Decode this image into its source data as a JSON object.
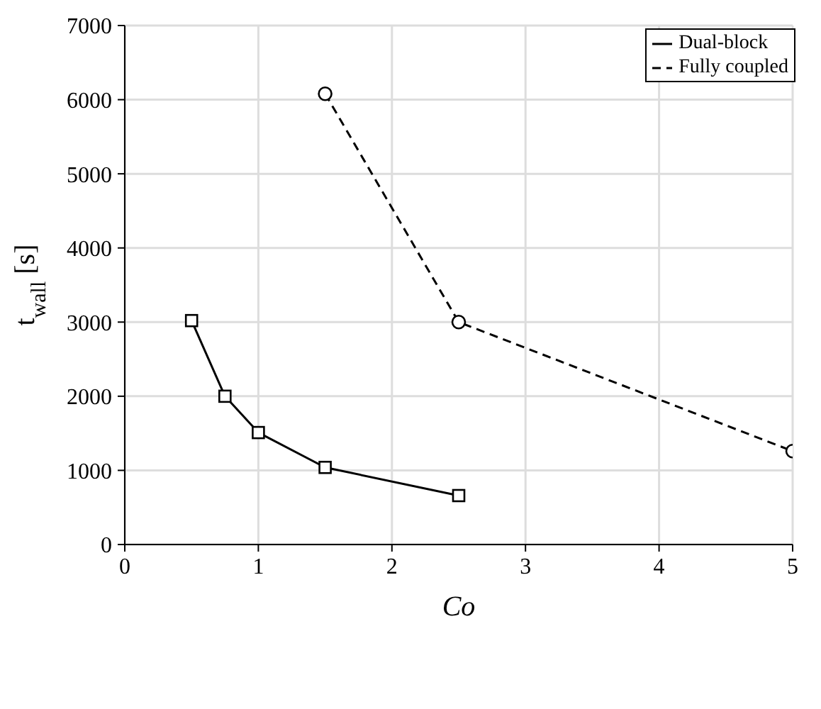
{
  "chart_data": {
    "type": "line",
    "xlabel": "Co",
    "ylabel": "t$_{wall}$ [s]",
    "xlim": [
      0,
      5
    ],
    "xticks": [
      0,
      1,
      2,
      3,
      4,
      5
    ],
    "ylim": [
      0,
      7000
    ],
    "yticks": [
      0,
      1000,
      2000,
      3000,
      4000,
      5000,
      6000,
      7000
    ],
    "grid": true,
    "legend": "top right",
    "series": [
      {
        "name": "Dual-block",
        "color": "#000000",
        "marker": "square",
        "line_style": "solid",
        "x": [
          0.5,
          0.75,
          1,
          1.5,
          2.5
        ],
        "values": [
          3020,
          2000,
          1510,
          1040,
          660
        ]
      },
      {
        "name": "Fully coupled",
        "color": "#000000",
        "marker": "circle",
        "line_style": "dashed",
        "x": [
          1.5,
          2.5,
          5
        ],
        "values": [
          6080,
          3000,
          1260
        ]
      }
    ]
  }
}
